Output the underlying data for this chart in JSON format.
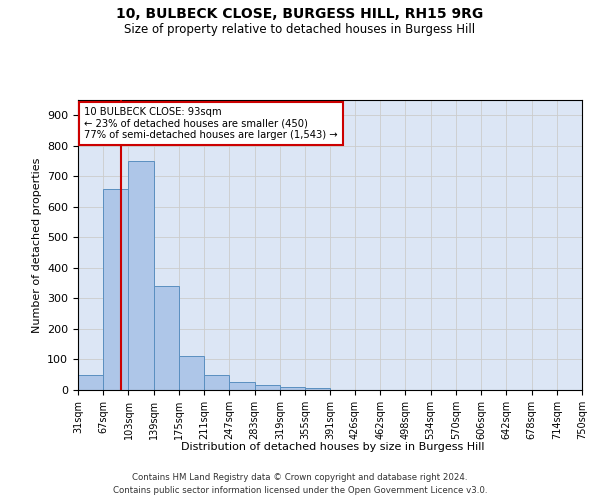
{
  "title1": "10, BULBECK CLOSE, BURGESS HILL, RH15 9RG",
  "title2": "Size of property relative to detached houses in Burgess Hill",
  "xlabel": "Distribution of detached houses by size in Burgess Hill",
  "ylabel": "Number of detached properties",
  "footnote1": "Contains HM Land Registry data © Crown copyright and database right 2024.",
  "footnote2": "Contains public sector information licensed under the Open Government Licence v3.0.",
  "bar_left_edges": [
    31,
    67,
    103,
    139,
    175,
    211,
    247,
    283,
    319,
    355,
    391,
    426,
    462,
    498,
    534,
    570,
    606,
    642,
    678,
    714
  ],
  "bar_heights": [
    50,
    660,
    750,
    340,
    110,
    50,
    25,
    15,
    10,
    8,
    0,
    0,
    0,
    0,
    0,
    0,
    0,
    0,
    0,
    0
  ],
  "bin_width": 36,
  "bar_color": "#aec6e8",
  "bar_edge_color": "#5a8fc0",
  "grid_color": "#cccccc",
  "bg_color": "#dce6f5",
  "vline_x": 93,
  "vline_color": "#cc0000",
  "annotation_text": "10 BULBECK CLOSE: 93sqm\n← 23% of detached houses are smaller (450)\n77% of semi-detached houses are larger (1,543) →",
  "annotation_box_color": "#cc0000",
  "ylim": [
    0,
    950
  ],
  "yticks": [
    0,
    100,
    200,
    300,
    400,
    500,
    600,
    700,
    800,
    900
  ],
  "xtick_labels": [
    "31sqm",
    "67sqm",
    "103sqm",
    "139sqm",
    "175sqm",
    "211sqm",
    "247sqm",
    "283sqm",
    "319sqm",
    "355sqm",
    "391sqm",
    "426sqm",
    "462sqm",
    "498sqm",
    "534sqm",
    "570sqm",
    "606sqm",
    "642sqm",
    "678sqm",
    "714sqm",
    "750sqm"
  ],
  "xtick_positions": [
    31,
    67,
    103,
    139,
    175,
    211,
    247,
    283,
    319,
    355,
    391,
    426,
    462,
    498,
    534,
    570,
    606,
    642,
    678,
    714,
    750
  ]
}
